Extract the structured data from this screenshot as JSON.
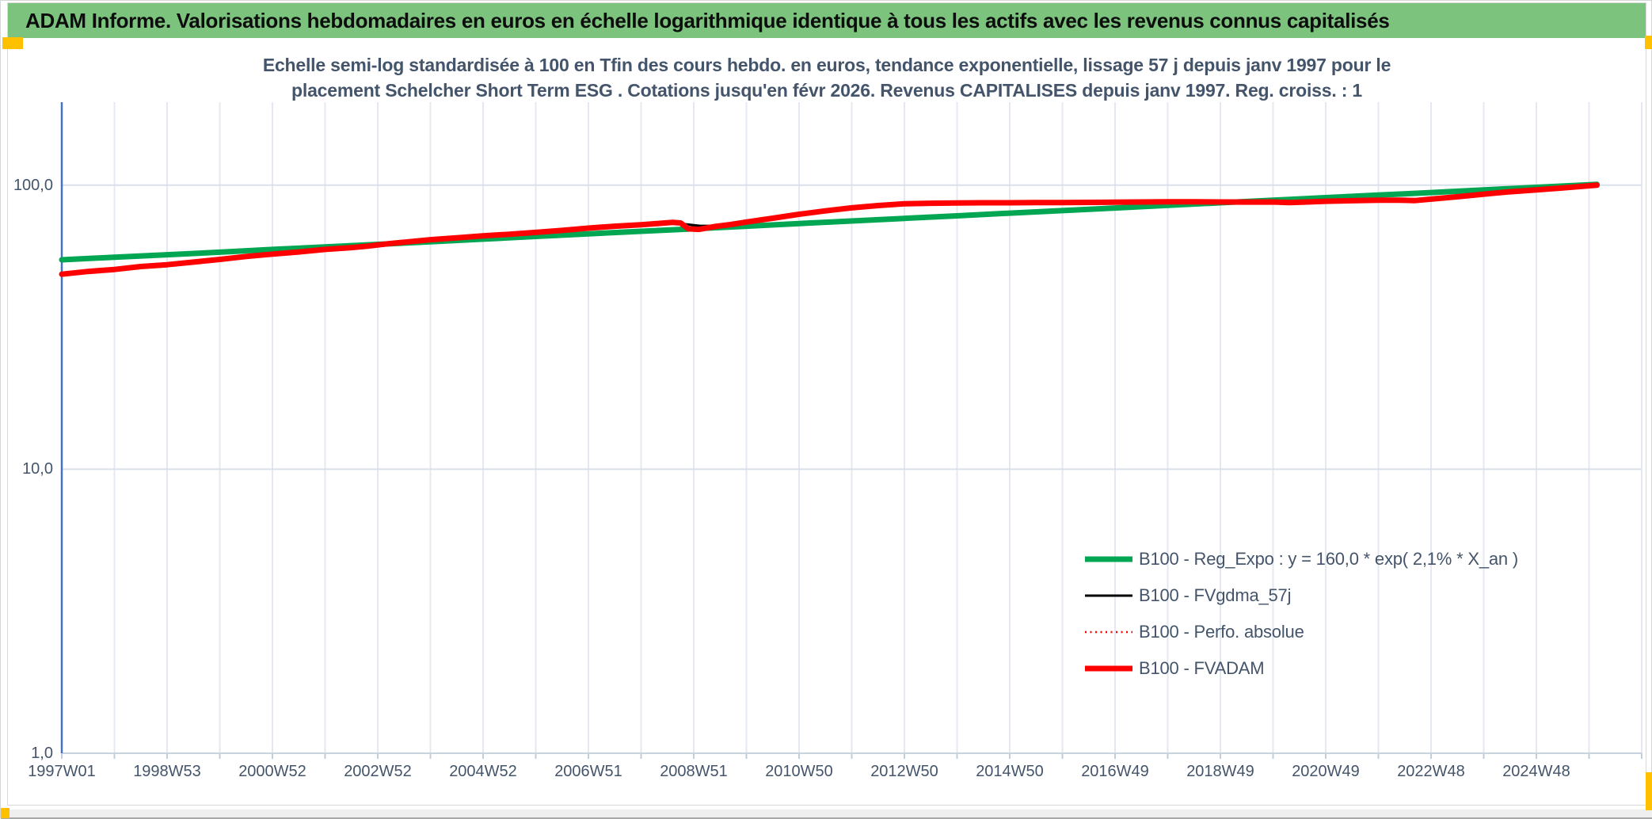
{
  "header": {
    "title": "ADAM Informe. Valorisations hebdomadaires en euros en échelle logarithmique identique à tous les actifs avec les revenus connus capitalisés"
  },
  "chart_title": {
    "line1": "Echelle semi-log standardisée à 100 en Tfin des cours hebdo. en euros, tendance exponentielle, lissage 57 j depuis janv 1997 pour le",
    "line2": "placement Schelcher Short Term ESG . Cotations jusqu'en févr 2026. Revenus CAPITALISES depuis janv 1997. Reg. croiss. : 1"
  },
  "colors": {
    "header_bg": "#7cc47e",
    "accent_yellow": "#ffc000",
    "title_text": "#44546a",
    "axis_text": "#44546a",
    "grid_minor": "#e4e8f0",
    "grid_major": "#d9e0ea",
    "spine_left": "#4472c4",
    "axis_line": "#c9d2df",
    "tick": "#c3ccda",
    "green": "#00a651",
    "red": "#ff0000",
    "black": "#000000",
    "bottom_bar": "#efefef"
  },
  "chart_data": {
    "type": "line",
    "y_scale": "log",
    "x_unit": "years_since_1997W01",
    "x_range": [
      0,
      30
    ],
    "ylim": [
      1,
      196
    ],
    "grid_step_years": 1,
    "legend_position": "inside-bottom-right",
    "y_ticks": [
      {
        "v": 100,
        "label": "100,0"
      },
      {
        "v": 10,
        "label": "10,0"
      },
      {
        "v": 1,
        "label": "1,0"
      }
    ],
    "x_ticks": [
      {
        "t": 0,
        "label": "1997W01"
      },
      {
        "t": 2,
        "label": "1998W53"
      },
      {
        "t": 4,
        "label": "2000W52"
      },
      {
        "t": 6,
        "label": "2002W52"
      },
      {
        "t": 8,
        "label": "2004W52"
      },
      {
        "t": 10,
        "label": "2006W51"
      },
      {
        "t": 12,
        "label": "2008W51"
      },
      {
        "t": 14,
        "label": "2010W50"
      },
      {
        "t": 16,
        "label": "2012W50"
      },
      {
        "t": 18,
        "label": "2014W50"
      },
      {
        "t": 20,
        "label": "2016W49"
      },
      {
        "t": 22,
        "label": "2018W49"
      },
      {
        "t": 24,
        "label": "2020W49"
      },
      {
        "t": 26,
        "label": "2022W48"
      },
      {
        "t": 28,
        "label": "2024W48"
      }
    ],
    "series": [
      {
        "name": "B100 - Reg_Expo : y = 160,0 * exp( 2,1% *  X_an )",
        "color": "#00a651",
        "width": 7,
        "dash": null,
        "points": [
          [
            0,
            54.6
          ],
          [
            1,
            55.8
          ],
          [
            2,
            56.9
          ],
          [
            3,
            58.1
          ],
          [
            4,
            59.4
          ],
          [
            5,
            60.6
          ],
          [
            6,
            61.9
          ],
          [
            7,
            63.2
          ],
          [
            8,
            64.6
          ],
          [
            9,
            66.0
          ],
          [
            10,
            67.4
          ],
          [
            11,
            68.8
          ],
          [
            12,
            70.2
          ],
          [
            13,
            71.7
          ],
          [
            14,
            73.3
          ],
          [
            15,
            74.8
          ],
          [
            16,
            76.4
          ],
          [
            17,
            78.0
          ],
          [
            18,
            79.7
          ],
          [
            19,
            81.4
          ],
          [
            20,
            83.1
          ],
          [
            21,
            84.9
          ],
          [
            22,
            86.7
          ],
          [
            23,
            88.5
          ],
          [
            24,
            90.4
          ],
          [
            25,
            92.3
          ],
          [
            26,
            94.2
          ],
          [
            27,
            96.2
          ],
          [
            28,
            98.3
          ],
          [
            29,
            100.4
          ],
          [
            29.15,
            100.7
          ]
        ]
      },
      {
        "name": "B100 - FVgdma_57j",
        "color": "#000000",
        "width": 3,
        "dash": null,
        "points": [
          [
            0,
            48.6
          ],
          [
            1,
            50.5
          ],
          [
            2,
            52.5
          ],
          [
            3,
            54.8
          ],
          [
            4,
            57.2
          ],
          [
            5,
            59.4
          ],
          [
            6,
            61.8
          ],
          [
            7,
            64.3
          ],
          [
            8,
            66.3
          ],
          [
            9,
            68.2
          ],
          [
            10,
            70.6
          ],
          [
            11,
            72.6
          ],
          [
            11.5,
            73.7
          ],
          [
            11.8,
            73.0
          ],
          [
            12.1,
            72.0
          ],
          [
            12.5,
            71.8
          ],
          [
            13,
            74.0
          ],
          [
            14,
            79.0
          ],
          [
            15,
            83.2
          ],
          [
            16,
            86.0
          ],
          [
            17,
            86.6
          ],
          [
            18,
            86.7
          ],
          [
            19,
            86.9
          ],
          [
            20,
            87.1
          ],
          [
            21,
            87.4
          ],
          [
            22,
            87.3
          ],
          [
            23,
            87.3
          ],
          [
            24,
            87.8
          ],
          [
            25,
            88.6
          ],
          [
            26,
            89.2
          ],
          [
            27,
            92.8
          ],
          [
            28,
            96.2
          ],
          [
            29.1,
            99.8
          ]
        ]
      },
      {
        "name": "B100 - Perfo. absolue",
        "color": "#ff0000",
        "width": 2.5,
        "dash": "2 4.5",
        "points": [
          [
            0,
            48.6
          ],
          [
            0.5,
            49.7
          ],
          [
            1,
            50.5
          ],
          [
            1.5,
            51.7
          ],
          [
            2,
            52.5
          ],
          [
            2.5,
            53.6
          ],
          [
            3,
            54.8
          ],
          [
            3.5,
            56.1
          ],
          [
            4,
            57.2
          ],
          [
            4.5,
            58.2
          ],
          [
            5,
            59.4
          ],
          [
            5.5,
            60.3
          ],
          [
            5.8,
            61.0
          ],
          [
            6.2,
            62.2
          ],
          [
            6.5,
            63.0
          ],
          [
            7,
            64.3
          ],
          [
            7.5,
            65.3
          ],
          [
            8,
            66.3
          ],
          [
            8.5,
            67.2
          ],
          [
            9,
            68.2
          ],
          [
            9.5,
            69.3
          ],
          [
            10,
            70.6
          ],
          [
            10.5,
            71.7
          ],
          [
            11,
            72.6
          ],
          [
            11.3,
            73.3
          ],
          [
            11.6,
            74.0
          ],
          [
            11.75,
            73.6
          ],
          [
            11.9,
            70.2
          ],
          [
            12.1,
            69.9
          ],
          [
            12.4,
            71.5
          ],
          [
            12.7,
            72.7
          ],
          [
            13,
            74.2
          ],
          [
            13.5,
            76.5
          ],
          [
            14,
            79.0
          ],
          [
            14.5,
            81.2
          ],
          [
            15,
            83.2
          ],
          [
            15.5,
            84.8
          ],
          [
            16,
            86.0
          ],
          [
            16.5,
            86.4
          ],
          [
            17,
            86.6
          ],
          [
            17.5,
            86.7
          ],
          [
            18,
            86.7
          ],
          [
            18.5,
            86.8
          ],
          [
            19,
            86.9
          ],
          [
            19.5,
            87.0
          ],
          [
            20,
            87.1
          ],
          [
            20.5,
            87.3
          ],
          [
            21,
            87.4
          ],
          [
            21.5,
            87.4
          ],
          [
            22,
            87.3
          ],
          [
            22.5,
            87.2
          ],
          [
            23,
            87.3
          ],
          [
            23.3,
            86.9
          ],
          [
            23.6,
            87.2
          ],
          [
            24,
            87.8
          ],
          [
            24.5,
            88.2
          ],
          [
            25,
            88.6
          ],
          [
            25.4,
            88.5
          ],
          [
            25.7,
            88.3
          ],
          [
            26,
            89.3
          ],
          [
            26.4,
            90.7
          ],
          [
            26.7,
            91.8
          ],
          [
            27,
            93.0
          ],
          [
            27.5,
            94.8
          ],
          [
            28,
            96.3
          ],
          [
            28.5,
            97.8
          ],
          [
            29.15,
            100.0
          ]
        ]
      },
      {
        "name": "B100 - FVADAM",
        "color": "#ff0000",
        "width": 7,
        "dash": null,
        "points": [
          [
            0,
            48.6
          ],
          [
            0.5,
            49.7
          ],
          [
            1,
            50.5
          ],
          [
            1.5,
            51.7
          ],
          [
            2,
            52.5
          ],
          [
            2.5,
            53.6
          ],
          [
            3,
            54.8
          ],
          [
            3.5,
            56.1
          ],
          [
            4,
            57.2
          ],
          [
            4.5,
            58.2
          ],
          [
            5,
            59.4
          ],
          [
            5.5,
            60.3
          ],
          [
            5.8,
            61.0
          ],
          [
            6.2,
            62.2
          ],
          [
            6.5,
            63.0
          ],
          [
            7,
            64.3
          ],
          [
            7.5,
            65.3
          ],
          [
            8,
            66.3
          ],
          [
            8.5,
            67.2
          ],
          [
            9,
            68.2
          ],
          [
            9.5,
            69.3
          ],
          [
            10,
            70.6
          ],
          [
            10.5,
            71.7
          ],
          [
            11,
            72.6
          ],
          [
            11.3,
            73.3
          ],
          [
            11.6,
            74.0
          ],
          [
            11.75,
            73.6
          ],
          [
            11.9,
            70.2
          ],
          [
            12.1,
            69.9
          ],
          [
            12.4,
            71.5
          ],
          [
            12.7,
            72.7
          ],
          [
            13,
            74.2
          ],
          [
            13.5,
            76.5
          ],
          [
            14,
            79.0
          ],
          [
            14.5,
            81.2
          ],
          [
            15,
            83.2
          ],
          [
            15.5,
            84.8
          ],
          [
            16,
            86.0
          ],
          [
            16.5,
            86.4
          ],
          [
            17,
            86.6
          ],
          [
            17.5,
            86.7
          ],
          [
            18,
            86.7
          ],
          [
            18.5,
            86.8
          ],
          [
            19,
            86.9
          ],
          [
            19.5,
            87.0
          ],
          [
            20,
            87.1
          ],
          [
            20.5,
            87.3
          ],
          [
            21,
            87.4
          ],
          [
            21.5,
            87.4
          ],
          [
            22,
            87.3
          ],
          [
            22.5,
            87.2
          ],
          [
            23,
            87.3
          ],
          [
            23.3,
            86.9
          ],
          [
            23.6,
            87.2
          ],
          [
            24,
            87.8
          ],
          [
            24.5,
            88.2
          ],
          [
            25,
            88.6
          ],
          [
            25.4,
            88.5
          ],
          [
            25.7,
            88.3
          ],
          [
            26,
            89.3
          ],
          [
            26.4,
            90.7
          ],
          [
            26.7,
            91.8
          ],
          [
            27,
            93.0
          ],
          [
            27.5,
            94.8
          ],
          [
            28,
            96.3
          ],
          [
            28.5,
            97.8
          ],
          [
            29.15,
            100.0
          ]
        ]
      }
    ]
  }
}
